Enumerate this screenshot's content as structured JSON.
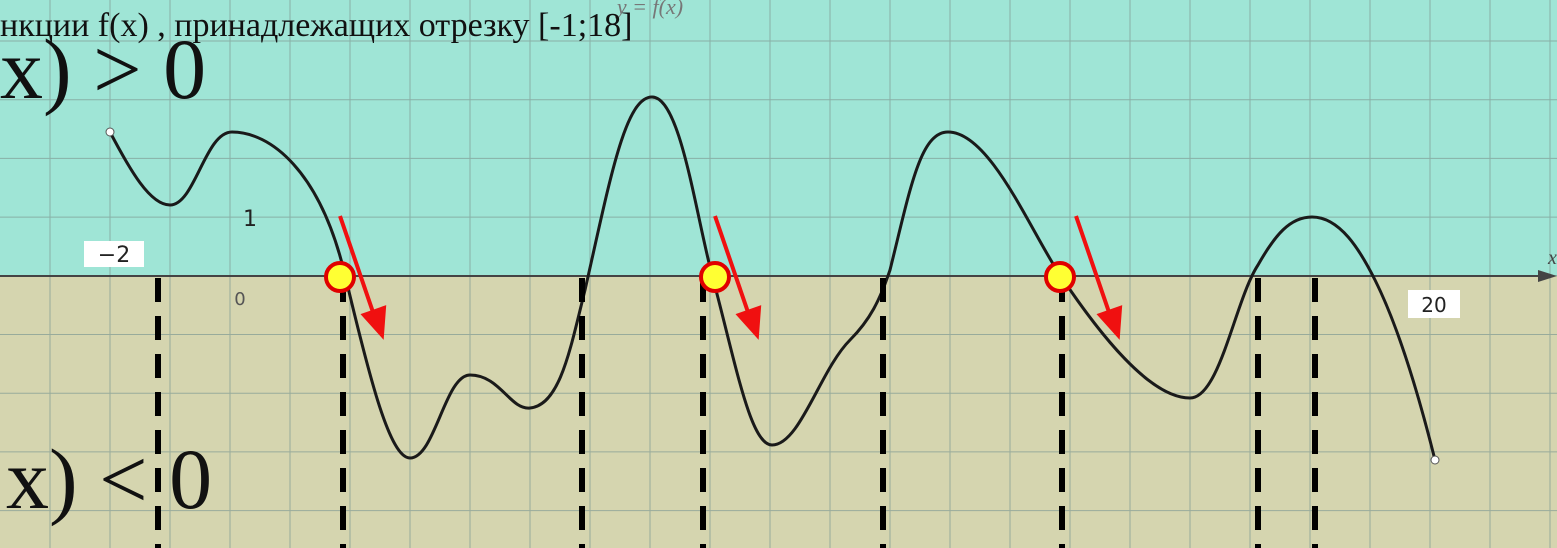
{
  "header": {
    "title": "нкции  f(x) , принадлежащих отрезку [-1;18]",
    "graph_label": "y = f(x)"
  },
  "regions": {
    "positive": "x) > 0",
    "negative": "x) < 0"
  },
  "axis_labels": {
    "x_minus_two": "−2",
    "y_one": "1",
    "origin": "0",
    "x_twenty": "20",
    "x_axis": "x"
  }
}
